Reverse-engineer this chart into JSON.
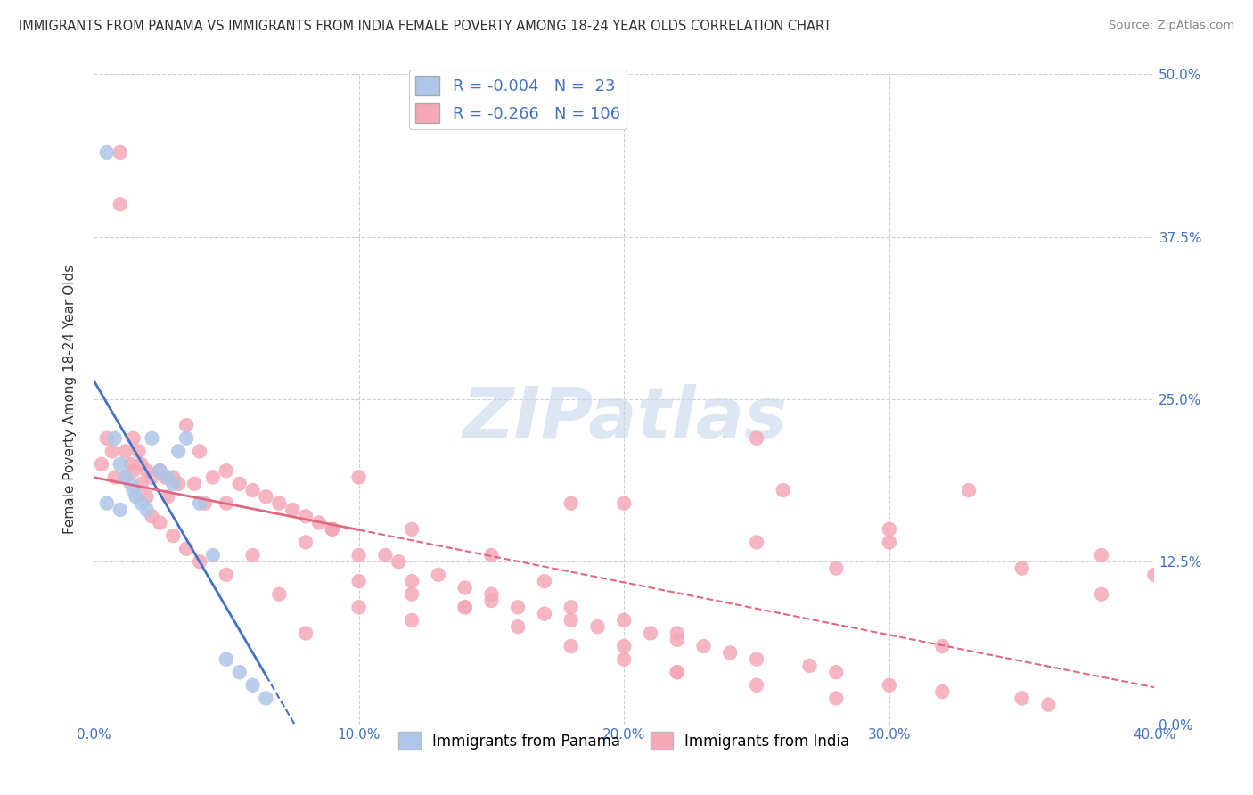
{
  "title": "IMMIGRANTS FROM PANAMA VS IMMIGRANTS FROM INDIA FEMALE POVERTY AMONG 18-24 YEAR OLDS CORRELATION CHART",
  "source": "Source: ZipAtlas.com",
  "ylabel": "Female Poverty Among 18-24 Year Olds",
  "xlim": [
    0.0,
    0.4
  ],
  "ylim": [
    0.0,
    0.5
  ],
  "xticks": [
    0.0,
    0.1,
    0.2,
    0.3,
    0.4
  ],
  "xtick_labels": [
    "0.0%",
    "10.0%",
    "20.0%",
    "30.0%",
    "40.0%"
  ],
  "yticks": [
    0.0,
    0.125,
    0.25,
    0.375,
    0.5
  ],
  "ytick_labels": [
    "0.0%",
    "12.5%",
    "25.0%",
    "37.5%",
    "50.0%"
  ],
  "panama_color": "#aec6e8",
  "india_color": "#f4a8b8",
  "panama_line_color": "#4472c4",
  "india_line_color": "#e06880",
  "panama_R": -0.004,
  "panama_N": 23,
  "india_R": -0.266,
  "india_N": 106,
  "watermark": "ZIPatlas",
  "legend_R_color": "#4472c4",
  "background_color": "#ffffff",
  "grid_color": "#d0d0d0",
  "panama_x": [
    0.005,
    0.008,
    0.01,
    0.012,
    0.014,
    0.015,
    0.016,
    0.018,
    0.02,
    0.022,
    0.025,
    0.028,
    0.03,
    0.032,
    0.035,
    0.04,
    0.045,
    0.05,
    0.055,
    0.06,
    0.065,
    0.005,
    0.01
  ],
  "panama_y": [
    0.44,
    0.22,
    0.2,
    0.19,
    0.185,
    0.18,
    0.175,
    0.17,
    0.165,
    0.22,
    0.195,
    0.19,
    0.185,
    0.21,
    0.22,
    0.17,
    0.13,
    0.05,
    0.04,
    0.03,
    0.02,
    0.17,
    0.165
  ],
  "india_x": [
    0.003,
    0.005,
    0.007,
    0.008,
    0.01,
    0.01,
    0.012,
    0.012,
    0.014,
    0.015,
    0.015,
    0.017,
    0.018,
    0.018,
    0.02,
    0.02,
    0.022,
    0.022,
    0.025,
    0.025,
    0.027,
    0.028,
    0.03,
    0.03,
    0.032,
    0.035,
    0.035,
    0.038,
    0.04,
    0.04,
    0.042,
    0.045,
    0.05,
    0.05,
    0.055,
    0.06,
    0.065,
    0.07,
    0.075,
    0.08,
    0.085,
    0.09,
    0.1,
    0.1,
    0.11,
    0.115,
    0.12,
    0.13,
    0.14,
    0.15,
    0.16,
    0.17,
    0.18,
    0.19,
    0.2,
    0.21,
    0.22,
    0.23,
    0.24,
    0.25,
    0.26,
    0.27,
    0.28,
    0.3,
    0.32,
    0.33,
    0.35,
    0.36,
    0.38,
    0.4,
    0.08,
    0.1,
    0.12,
    0.14,
    0.15,
    0.17,
    0.18,
    0.2,
    0.22,
    0.05,
    0.06,
    0.07,
    0.08,
    0.09,
    0.1,
    0.12,
    0.14,
    0.16,
    0.18,
    0.2,
    0.25,
    0.28,
    0.3,
    0.15,
    0.18,
    0.2,
    0.22,
    0.25,
    0.28,
    0.3,
    0.35,
    0.38,
    0.12,
    0.25,
    0.32,
    0.22
  ],
  "india_y": [
    0.2,
    0.22,
    0.21,
    0.19,
    0.44,
    0.4,
    0.21,
    0.19,
    0.2,
    0.22,
    0.195,
    0.21,
    0.2,
    0.185,
    0.195,
    0.175,
    0.19,
    0.16,
    0.195,
    0.155,
    0.19,
    0.175,
    0.19,
    0.145,
    0.185,
    0.23,
    0.135,
    0.185,
    0.21,
    0.125,
    0.17,
    0.19,
    0.195,
    0.115,
    0.185,
    0.18,
    0.175,
    0.17,
    0.165,
    0.16,
    0.155,
    0.15,
    0.19,
    0.09,
    0.13,
    0.125,
    0.15,
    0.115,
    0.105,
    0.095,
    0.09,
    0.085,
    0.17,
    0.075,
    0.17,
    0.07,
    0.065,
    0.06,
    0.055,
    0.22,
    0.18,
    0.045,
    0.04,
    0.03,
    0.025,
    0.18,
    0.02,
    0.015,
    0.13,
    0.115,
    0.14,
    0.11,
    0.1,
    0.09,
    0.13,
    0.11,
    0.09,
    0.08,
    0.07,
    0.17,
    0.13,
    0.1,
    0.07,
    0.15,
    0.13,
    0.11,
    0.09,
    0.075,
    0.06,
    0.05,
    0.14,
    0.12,
    0.15,
    0.1,
    0.08,
    0.06,
    0.04,
    0.03,
    0.02,
    0.14,
    0.12,
    0.1,
    0.08,
    0.05,
    0.06,
    0.04
  ]
}
